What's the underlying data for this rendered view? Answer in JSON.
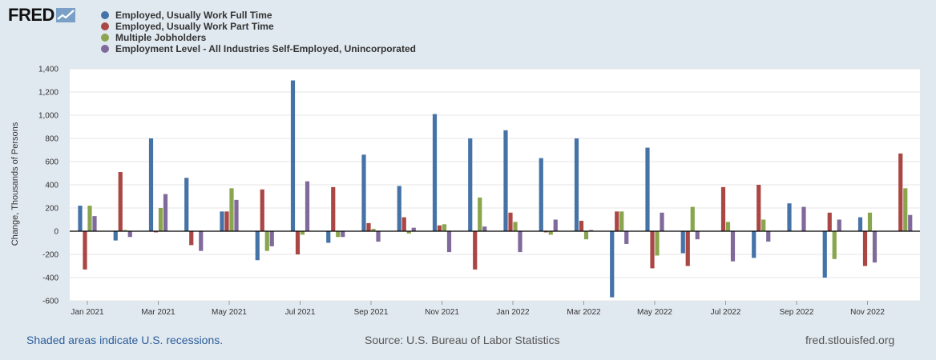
{
  "logo": {
    "text": "FRED"
  },
  "chart_data": {
    "type": "bar",
    "ylabel": "Change, Thousands of Persons",
    "ylim": [
      -600,
      1400
    ],
    "yticks": [
      1400,
      1200,
      1000,
      800,
      600,
      400,
      200,
      0,
      -200,
      -400,
      -600
    ],
    "ytick_labels": [
      "1,400",
      "1,200",
      "1,000",
      "800",
      "600",
      "400",
      "200",
      "0",
      "-200",
      "-400",
      "-600"
    ],
    "categories": [
      "Jan 2021",
      "Feb 2021",
      "Mar 2021",
      "Apr 2021",
      "May 2021",
      "Jun 2021",
      "Jul 2021",
      "Aug 2021",
      "Sep 2021",
      "Oct 2021",
      "Nov 2021",
      "Dec 2021",
      "Jan 2022",
      "Feb 2022",
      "Mar 2022",
      "Apr 2022",
      "May 2022",
      "Jun 2022",
      "Jul 2022",
      "Aug 2022",
      "Sep 2022",
      "Oct 2022",
      "Nov 2022",
      "Dec 2022"
    ],
    "xtick_labels": [
      "Jan 2021",
      "Mar 2021",
      "May 2021",
      "Jul 2021",
      "Sep 2021",
      "Nov 2021",
      "Jan 2022",
      "Mar 2022",
      "May 2022",
      "Jul 2022",
      "Sep 2022",
      "Nov 2022"
    ],
    "series": [
      {
        "name": "Employed, Usually Work Full Time",
        "color": "#4572a7",
        "values": [
          220,
          -80,
          800,
          460,
          170,
          -250,
          1300,
          -100,
          660,
          390,
          1010,
          800,
          870,
          630,
          800,
          -570,
          720,
          -190,
          0,
          -230,
          240,
          -400,
          120,
          0
        ]
      },
      {
        "name": "Employed, Usually Work Part Time",
        "color": "#aa4643",
        "values": [
          -330,
          510,
          -10,
          -120,
          170,
          360,
          -200,
          380,
          70,
          120,
          50,
          -330,
          160,
          -10,
          90,
          170,
          -320,
          -300,
          380,
          400,
          0,
          160,
          -300,
          670
        ]
      },
      {
        "name": "Multiple Jobholders",
        "color": "#89a54e",
        "values": [
          220,
          10,
          200,
          0,
          370,
          -170,
          -30,
          -50,
          20,
          -20,
          60,
          290,
          80,
          -30,
          -70,
          170,
          -210,
          210,
          80,
          100,
          0,
          -240,
          160,
          370
        ]
      },
      {
        "name": "Employment Level - All Industries Self-Employed, Unincorporated",
        "color": "#80699b",
        "values": [
          130,
          -50,
          320,
          -170,
          270,
          -130,
          430,
          -50,
          -90,
          30,
          -180,
          40,
          -180,
          100,
          10,
          -110,
          160,
          -70,
          -260,
          -90,
          210,
          100,
          -270,
          140
        ]
      }
    ]
  },
  "footer": {
    "recessions": "Shaded areas indicate U.S. recessions.",
    "source": "Source: U.S. Bureau of Labor Statistics",
    "site": "fred.stlouisfed.org"
  }
}
